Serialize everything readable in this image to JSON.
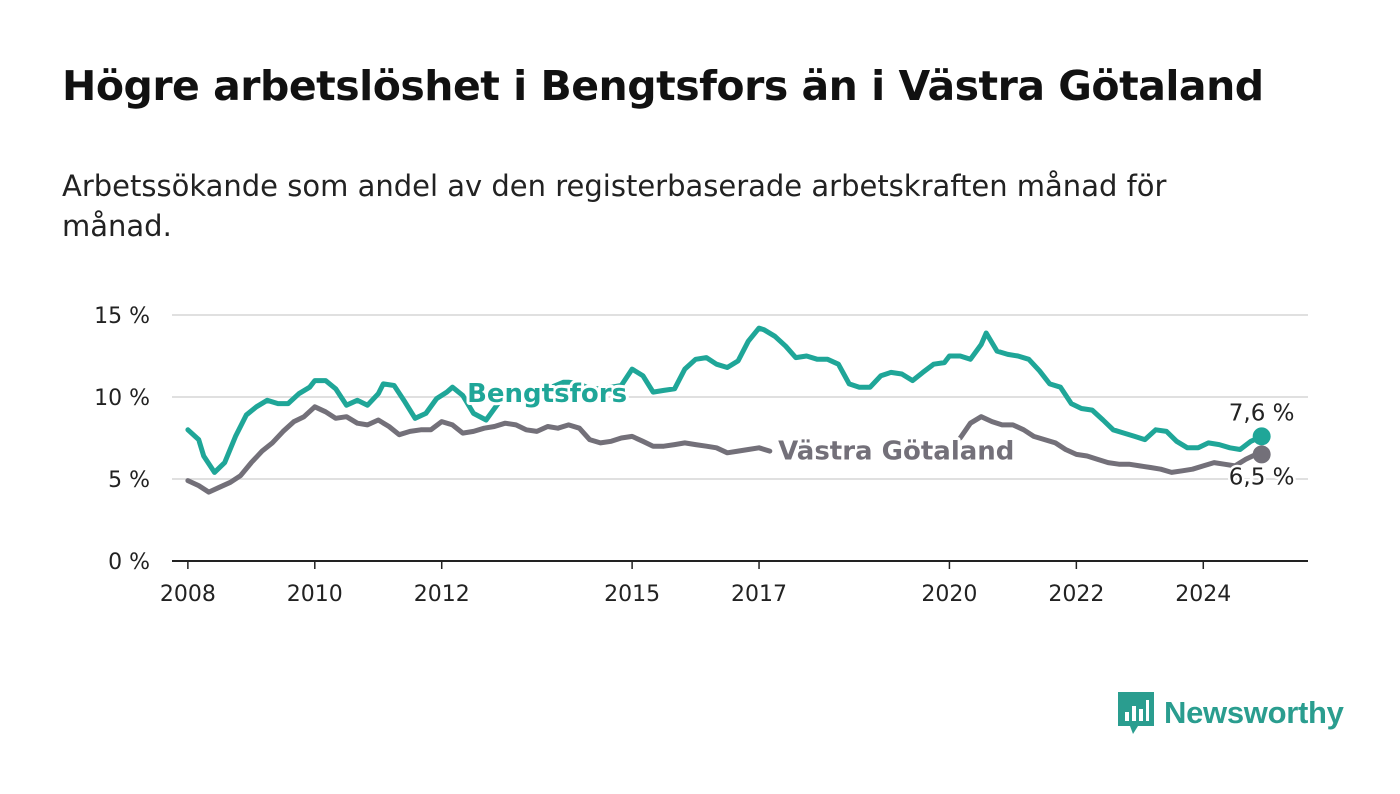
{
  "title": "Högre arbetslöshet i Bengtsfors än i Västra Götaland",
  "subtitle": "Arbetssökande som andel av den registerbaserade arbetskraften månad för månad.",
  "brand": {
    "name": "Newsworthy",
    "icon": "newsworthy-logo-icon",
    "color": "#2a9d8f"
  },
  "chart_data": {
    "type": "line",
    "title": "Högre arbetslöshet i Bengtsfors än i Västra Götaland",
    "subtitle": "Arbetssökande som andel av den registerbaserade arbetskraften månad för månad.",
    "xlabel": "",
    "ylabel": "",
    "xlim": [
      2007.75,
      2025.65
    ],
    "ylim": [
      0,
      15
    ],
    "y_ticks": [
      {
        "value": 0,
        "label": "0 %"
      },
      {
        "value": 5,
        "label": "5 %"
      },
      {
        "value": 10,
        "label": "10 %"
      },
      {
        "value": 15,
        "label": "15 %"
      }
    ],
    "x_ticks": [
      {
        "value": 2008,
        "label": "2008"
      },
      {
        "value": 2010,
        "label": "2010"
      },
      {
        "value": 2012,
        "label": "2012"
      },
      {
        "value": 2015,
        "label": "2015"
      },
      {
        "value": 2017,
        "label": "2017"
      },
      {
        "value": 2020,
        "label": "2020"
      },
      {
        "value": 2022,
        "label": "2022"
      },
      {
        "value": 2024,
        "label": "2024"
      }
    ],
    "grid": true,
    "legend": "inline labels",
    "series": [
      {
        "name": "Bengtsfors",
        "color": "#1fa698",
        "label_position": [
          2012.4,
          9.7
        ],
        "end_label": "7,6 %",
        "points": [
          [
            2008.0,
            8.0
          ],
          [
            2008.17,
            7.4
          ],
          [
            2008.25,
            6.4
          ],
          [
            2008.42,
            5.4
          ],
          [
            2008.58,
            6.0
          ],
          [
            2008.75,
            7.6
          ],
          [
            2008.92,
            8.9
          ],
          [
            2009.08,
            9.4
          ],
          [
            2009.25,
            9.8
          ],
          [
            2009.42,
            9.6
          ],
          [
            2009.58,
            9.6
          ],
          [
            2009.75,
            10.2
          ],
          [
            2009.92,
            10.6
          ],
          [
            2010.0,
            11.0
          ],
          [
            2010.17,
            11.0
          ],
          [
            2010.33,
            10.5
          ],
          [
            2010.5,
            9.5
          ],
          [
            2010.67,
            9.8
          ],
          [
            2010.83,
            9.5
          ],
          [
            2011.0,
            10.2
          ],
          [
            2011.08,
            10.8
          ],
          [
            2011.25,
            10.7
          ],
          [
            2011.42,
            9.7
          ],
          [
            2011.58,
            8.7
          ],
          [
            2011.75,
            9.0
          ],
          [
            2011.92,
            9.9
          ],
          [
            2012.08,
            10.3
          ],
          [
            2012.17,
            10.6
          ],
          [
            2012.33,
            10.1
          ],
          [
            2012.5,
            9.0
          ],
          [
            2012.7,
            8.6
          ],
          [
            2013.0,
            10.2
          ],
          [
            2013.17,
            10.3
          ],
          [
            2013.33,
            10.0
          ],
          [
            2013.5,
            10.2
          ],
          [
            2013.67,
            10.5
          ],
          [
            2013.92,
            10.9
          ],
          [
            2014.0,
            10.9
          ],
          [
            2014.17,
            10.8
          ],
          [
            2014.33,
            10.5
          ],
          [
            2014.5,
            10.5
          ],
          [
            2014.67,
            10.6
          ],
          [
            2014.83,
            10.7
          ],
          [
            2015.0,
            11.7
          ],
          [
            2015.17,
            11.3
          ],
          [
            2015.33,
            10.3
          ],
          [
            2015.5,
            10.4
          ],
          [
            2015.67,
            10.5
          ],
          [
            2015.83,
            11.7
          ],
          [
            2016.0,
            12.3
          ],
          [
            2016.17,
            12.4
          ],
          [
            2016.33,
            12.0
          ],
          [
            2016.5,
            11.8
          ],
          [
            2016.67,
            12.2
          ],
          [
            2016.83,
            13.4
          ],
          [
            2017.0,
            14.2
          ],
          [
            2017.08,
            14.1
          ],
          [
            2017.25,
            13.7
          ],
          [
            2017.42,
            13.1
          ],
          [
            2017.58,
            12.4
          ],
          [
            2017.75,
            12.5
          ],
          [
            2017.92,
            12.3
          ],
          [
            2018.08,
            12.3
          ],
          [
            2018.25,
            12.0
          ],
          [
            2018.42,
            10.8
          ],
          [
            2018.58,
            10.6
          ],
          [
            2018.75,
            10.6
          ],
          [
            2018.92,
            11.3
          ],
          [
            2019.08,
            11.5
          ],
          [
            2019.25,
            11.4
          ],
          [
            2019.42,
            11.0
          ],
          [
            2019.58,
            11.5
          ],
          [
            2019.75,
            12.0
          ],
          [
            2019.92,
            12.1
          ],
          [
            2020.0,
            12.5
          ],
          [
            2020.17,
            12.5
          ],
          [
            2020.33,
            12.3
          ],
          [
            2020.5,
            13.2
          ],
          [
            2020.58,
            13.9
          ],
          [
            2020.75,
            12.8
          ],
          [
            2020.92,
            12.6
          ],
          [
            2021.08,
            12.5
          ],
          [
            2021.25,
            12.3
          ],
          [
            2021.42,
            11.6
          ],
          [
            2021.58,
            10.8
          ],
          [
            2021.75,
            10.6
          ],
          [
            2021.92,
            9.6
          ],
          [
            2022.08,
            9.3
          ],
          [
            2022.25,
            9.2
          ],
          [
            2022.42,
            8.6
          ],
          [
            2022.58,
            8.0
          ],
          [
            2022.75,
            7.8
          ],
          [
            2022.92,
            7.6
          ],
          [
            2023.08,
            7.4
          ],
          [
            2023.25,
            8.0
          ],
          [
            2023.42,
            7.9
          ],
          [
            2023.58,
            7.3
          ],
          [
            2023.75,
            6.9
          ],
          [
            2023.92,
            6.9
          ],
          [
            2024.08,
            7.2
          ],
          [
            2024.25,
            7.1
          ],
          [
            2024.42,
            6.9
          ],
          [
            2024.58,
            6.8
          ],
          [
            2024.75,
            7.3
          ],
          [
            2024.92,
            7.6
          ]
        ]
      },
      {
        "name": "Västra Götaland",
        "color": "#737079",
        "label_position": [
          2017.3,
          6.2
        ],
        "end_label": "6,5 %",
        "points": [
          [
            2008.0,
            4.9
          ],
          [
            2008.17,
            4.6
          ],
          [
            2008.33,
            4.2
          ],
          [
            2008.5,
            4.5
          ],
          [
            2008.67,
            4.8
          ],
          [
            2008.83,
            5.2
          ],
          [
            2009.0,
            6.0
          ],
          [
            2009.17,
            6.7
          ],
          [
            2009.33,
            7.2
          ],
          [
            2009.5,
            7.9
          ],
          [
            2009.67,
            8.5
          ],
          [
            2009.83,
            8.8
          ],
          [
            2010.0,
            9.4
          ],
          [
            2010.17,
            9.1
          ],
          [
            2010.33,
            8.7
          ],
          [
            2010.5,
            8.8
          ],
          [
            2010.67,
            8.4
          ],
          [
            2010.83,
            8.3
          ],
          [
            2011.0,
            8.6
          ],
          [
            2011.17,
            8.2
          ],
          [
            2011.33,
            7.7
          ],
          [
            2011.5,
            7.9
          ],
          [
            2011.67,
            8.0
          ],
          [
            2011.83,
            8.0
          ],
          [
            2012.0,
            8.5
          ],
          [
            2012.17,
            8.3
          ],
          [
            2012.33,
            7.8
          ],
          [
            2012.5,
            7.9
          ],
          [
            2012.67,
            8.1
          ],
          [
            2012.83,
            8.2
          ],
          [
            2013.0,
            8.4
          ],
          [
            2013.17,
            8.3
          ],
          [
            2013.33,
            8.0
          ],
          [
            2013.5,
            7.9
          ],
          [
            2013.67,
            8.2
          ],
          [
            2013.83,
            8.1
          ],
          [
            2014.0,
            8.3
          ],
          [
            2014.17,
            8.1
          ],
          [
            2014.33,
            7.4
          ],
          [
            2014.5,
            7.2
          ],
          [
            2014.67,
            7.3
          ],
          [
            2014.83,
            7.5
          ],
          [
            2015.0,
            7.6
          ],
          [
            2015.17,
            7.3
          ],
          [
            2015.33,
            7.0
          ],
          [
            2015.5,
            7.0
          ],
          [
            2015.67,
            7.1
          ],
          [
            2015.83,
            7.2
          ],
          [
            2016.0,
            7.1
          ],
          [
            2016.17,
            7.0
          ],
          [
            2016.33,
            6.9
          ],
          [
            2016.5,
            6.6
          ],
          [
            2016.67,
            6.7
          ],
          [
            2016.83,
            6.8
          ],
          [
            2017.0,
            6.9
          ],
          [
            2017.17,
            6.7
          ]
        ]
      },
      {
        "name": "",
        "color": "#737079",
        "end_label": "",
        "points": [
          [
            2020.17,
            7.5
          ],
          [
            2020.33,
            8.4
          ],
          [
            2020.5,
            8.8
          ],
          [
            2020.67,
            8.5
          ],
          [
            2020.83,
            8.3
          ],
          [
            2021.0,
            8.3
          ],
          [
            2021.17,
            8.0
          ],
          [
            2021.33,
            7.6
          ],
          [
            2021.5,
            7.4
          ],
          [
            2021.67,
            7.2
          ],
          [
            2021.83,
            6.8
          ],
          [
            2022.0,
            6.5
          ],
          [
            2022.17,
            6.4
          ],
          [
            2022.33,
            6.2
          ],
          [
            2022.5,
            6.0
          ],
          [
            2022.67,
            5.9
          ],
          [
            2022.83,
            5.9
          ],
          [
            2023.0,
            5.8
          ],
          [
            2023.17,
            5.7
          ],
          [
            2023.33,
            5.6
          ],
          [
            2023.5,
            5.4
          ],
          [
            2023.67,
            5.5
          ],
          [
            2023.83,
            5.6
          ],
          [
            2024.0,
            5.8
          ],
          [
            2024.17,
            6.0
          ],
          [
            2024.33,
            5.9
          ],
          [
            2024.5,
            5.8
          ],
          [
            2024.67,
            6.2
          ],
          [
            2024.83,
            6.5
          ],
          [
            2024.92,
            6.5
          ]
        ]
      }
    ]
  }
}
